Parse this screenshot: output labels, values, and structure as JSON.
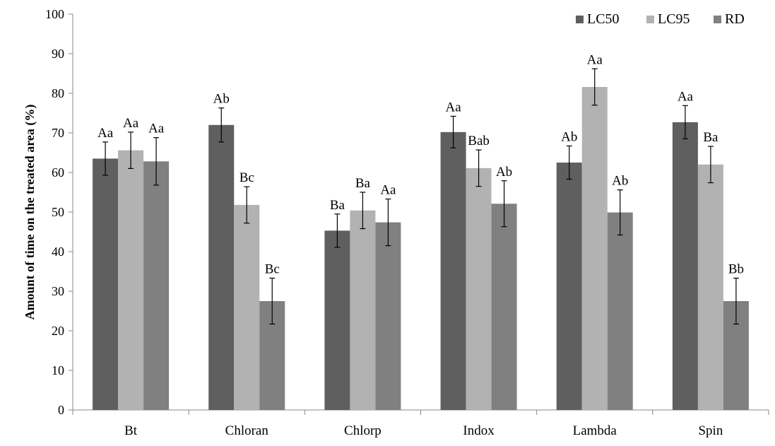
{
  "chart_data": {
    "type": "bar",
    "title": "",
    "xlabel": "",
    "ylabel": "Amount of time on the treated  area (%)",
    "ylim": [
      0,
      100
    ],
    "yticks": [
      0,
      10,
      20,
      30,
      40,
      50,
      60,
      70,
      80,
      90,
      100
    ],
    "grid": false,
    "legend_position": "top-right",
    "categories": [
      "Bt",
      "Chloran",
      "Chlorp",
      "Indox",
      "Lambda",
      "Spin"
    ],
    "series": [
      {
        "name": "LC50",
        "color": "#5f5f5f",
        "values": [
          63.5,
          72,
          45.3,
          70.2,
          62.5,
          72.7
        ],
        "errors": [
          4.2,
          4.3,
          4.2,
          4.0,
          4.2,
          4.2
        ],
        "labels": [
          "Aa",
          "Ab",
          "Ba",
          "Aa",
          "Ab",
          "Aa"
        ]
      },
      {
        "name": "LC95",
        "color": "#b2b2b2",
        "values": [
          65.6,
          51.8,
          50.4,
          61.1,
          81.6,
          62.0
        ],
        "errors": [
          4.6,
          4.6,
          4.6,
          4.6,
          4.6,
          4.6
        ],
        "labels": [
          "Aa",
          "Bc",
          "Ba",
          "Bab",
          "Aa",
          "Ba"
        ]
      },
      {
        "name": "RD",
        "color": "#808080",
        "values": [
          62.8,
          27.5,
          47.4,
          52.1,
          49.9,
          27.5
        ],
        "errors": [
          6.0,
          5.8,
          5.9,
          5.8,
          5.7,
          5.8
        ],
        "labels": [
          "Aa",
          "Bc",
          "Aa",
          "Ab",
          "Ab",
          "Bb"
        ]
      }
    ]
  }
}
